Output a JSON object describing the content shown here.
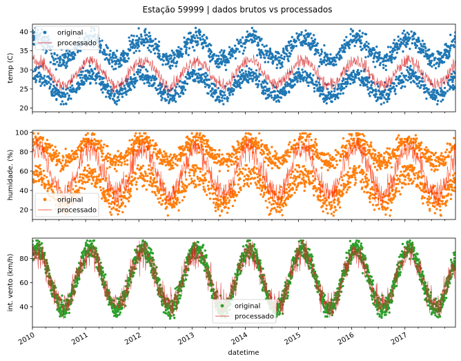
{
  "figure": {
    "title": "Estação 59999 | dados brutos vs processados",
    "xlabel": "datetime"
  },
  "chart_data": [
    {
      "type": "scatter",
      "ylabel": "temp (C)",
      "xlim": [
        2010.0,
        2017.95
      ],
      "ylim": [
        19,
        42
      ],
      "yticks": [
        20,
        25,
        30,
        35,
        40
      ],
      "grid": false,
      "legend_position": "top-left",
      "colors": {
        "original": "#1f77b4",
        "processado": "#d62728"
      },
      "series": [
        {
          "name": "original",
          "style": "points",
          "pattern": "seasonal-two-band",
          "upper_band": {
            "min": 30,
            "max": 40
          },
          "lower_band": {
            "min": 21,
            "max": 30
          },
          "season_peak": "start-of-year"
        },
        {
          "name": "processado",
          "style": "line",
          "pattern": "seasonal",
          "min": 24,
          "max": 34,
          "season_peak": "start-of-year"
        }
      ]
    },
    {
      "type": "scatter",
      "ylabel": "humidade. (%)",
      "xlim": [
        2010.0,
        2017.95
      ],
      "ylim": [
        10,
        102
      ],
      "yticks": [
        20,
        40,
        60,
        80,
        100
      ],
      "grid": false,
      "legend_position": "bottom-left",
      "colors": {
        "original": "#ff7f0e",
        "processado": "#ff3300"
      },
      "series": [
        {
          "name": "original",
          "style": "points",
          "pattern": "seasonal-two-band",
          "upper_band": {
            "min": 60,
            "max": 98
          },
          "lower_band": {
            "min": 14,
            "max": 65
          },
          "season_peak": "start-of-year"
        },
        {
          "name": "processado",
          "style": "line",
          "pattern": "seasonal",
          "min": 22,
          "max": 95,
          "season_peak": "start-of-year"
        }
      ]
    },
    {
      "type": "scatter",
      "ylabel": "int. vento (km/h)",
      "xlim": [
        2010.0,
        2017.95
      ],
      "ylim": [
        23,
        97
      ],
      "yticks": [
        40,
        60,
        80
      ],
      "grid": false,
      "legend_position": "bottom-center",
      "colors": {
        "original": "#2ca02c",
        "processado": "#d62728"
      },
      "series": [
        {
          "name": "original",
          "style": "points",
          "pattern": "seasonal",
          "min": 28,
          "max": 95,
          "season_peak": "start-of-year"
        },
        {
          "name": "processado",
          "style": "line",
          "pattern": "seasonal",
          "min": 28,
          "max": 95,
          "season_peak": "start-of-year"
        }
      ]
    }
  ],
  "xticks": [
    {
      "value": 2010,
      "label": "2010"
    },
    {
      "value": 2011,
      "label": "2011"
    },
    {
      "value": 2012,
      "label": "2012"
    },
    {
      "value": 2013,
      "label": "2013"
    },
    {
      "value": 2014,
      "label": "2014"
    },
    {
      "value": 2015,
      "label": "2015"
    },
    {
      "value": 2016,
      "label": "2016"
    },
    {
      "value": 2017,
      "label": "2017"
    }
  ]
}
